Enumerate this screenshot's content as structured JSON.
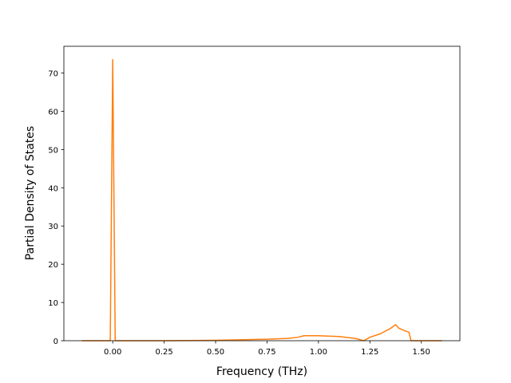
{
  "chart_data": {
    "type": "line",
    "xlabel": "Frequency (THz)",
    "ylabel": "Partial Density of States",
    "x": [
      -0.15,
      -0.012,
      0,
      0.012,
      0.25,
      0.5,
      0.75,
      0.85,
      0.9,
      0.93,
      1.0,
      1.1,
      1.18,
      1.22,
      1.25,
      1.3,
      1.35,
      1.375,
      1.39,
      1.42,
      1.44,
      1.45,
      1.6
    ],
    "series": [
      {
        "color": "#ff7f0e",
        "values": [
          0,
          0,
          73.5,
          0,
          0,
          0.1,
          0.4,
          0.6,
          0.9,
          1.3,
          1.3,
          1.1,
          0.6,
          0,
          0.9,
          1.8,
          3.2,
          4.2,
          3.3,
          2.6,
          2.2,
          0,
          0
        ]
      }
    ],
    "xlim": [
      -0.2375,
      1.6875
    ],
    "xticks": [
      {
        "value": 0,
        "label": "0.00"
      },
      {
        "value": 0.25,
        "label": "0.25"
      },
      {
        "value": 0.5,
        "label": "0.50"
      },
      {
        "value": 0.75,
        "label": "0.75"
      },
      {
        "value": 1,
        "label": "1.00"
      },
      {
        "value": 1.25,
        "label": "1.25"
      },
      {
        "value": 1.5,
        "label": "1.50"
      }
    ],
    "ylim": [
      0,
      77
    ],
    "yticks": [
      0,
      10,
      20,
      30,
      40,
      50,
      60,
      70
    ]
  }
}
